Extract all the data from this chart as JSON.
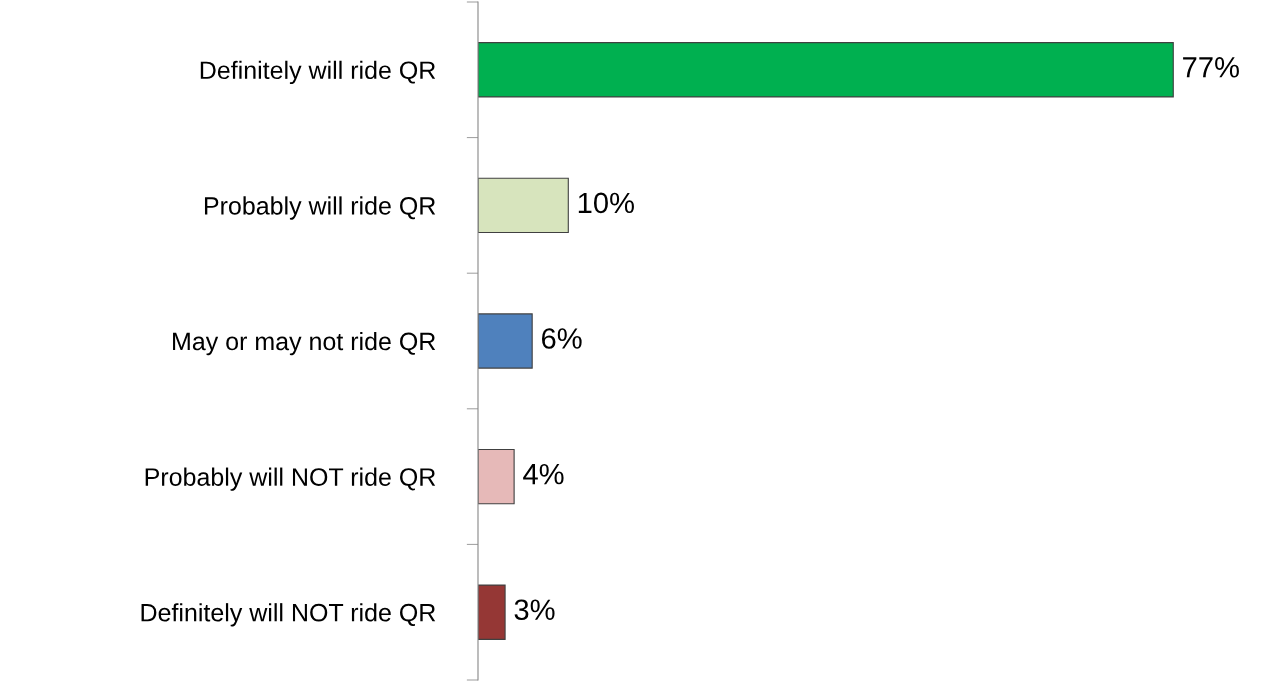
{
  "chart_data": {
    "type": "bar",
    "orientation": "horizontal",
    "categories": [
      "Definitely will ride QR",
      "Probably will ride QR",
      "May or may not ride QR",
      "Probably will NOT ride QR",
      "Definitely will NOT ride QR"
    ],
    "values": [
      77,
      10,
      6,
      4,
      3
    ],
    "colors": [
      "#00b050",
      "#d7e4bd",
      "#4f81bd",
      "#e6b9b8",
      "#953735"
    ],
    "value_labels": [
      "77%",
      "10%",
      "6%",
      "4%",
      "3%"
    ],
    "grid": false,
    "legend": false
  }
}
